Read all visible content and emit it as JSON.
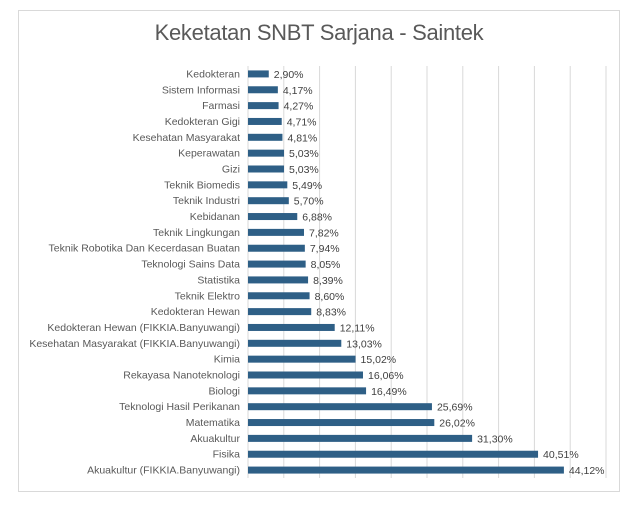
{
  "chart_data": {
    "type": "bar",
    "orientation": "horizontal",
    "title": "Keketatan SNBT Sarjana - Saintek",
    "xlabel": "",
    "ylabel": "",
    "xlim": [
      0,
      50
    ],
    "grid": true,
    "legend": "none",
    "bar_color": "#2E5F86",
    "categories": [
      "Kedokteran",
      "Sistem Informasi",
      "Farmasi",
      "Kedokteran Gigi",
      "Kesehatan Masyarakat",
      "Keperawatan",
      "Gizi",
      "Teknik Biomedis",
      "Teknik Industri",
      "Kebidanan",
      "Teknik Lingkungan",
      "Teknik Robotika Dan Kecerdasan Buatan",
      "Teknologi Sains Data",
      "Statistika",
      "Teknik Elektro",
      "Kedokteran Hewan",
      "Kedokteran Hewan (FIKKIA.Banyuwangi)",
      "Kesehatan Masyarakat (FIKKIA.Banyuwangi)",
      "Kimia",
      "Rekayasa Nanoteknologi",
      "Biologi",
      "Teknologi Hasil Perikanan",
      "Matematika",
      "Akuakultur",
      "Fisika",
      "Akuakultur (FIKKIA.Banyuwangi)"
    ],
    "values": [
      2.9,
      4.17,
      4.27,
      4.71,
      4.81,
      5.03,
      5.03,
      5.49,
      5.7,
      6.88,
      7.82,
      7.94,
      8.05,
      8.39,
      8.6,
      8.83,
      12.11,
      13.03,
      15.02,
      16.06,
      16.49,
      25.69,
      26.02,
      31.3,
      40.51,
      44.12
    ],
    "data_labels": [
      "2,90%",
      "4,17%",
      "4,27%",
      "4,71%",
      "4,81%",
      "5,03%",
      "5,03%",
      "5,49%",
      "5,70%",
      "6,88%",
      "7,82%",
      "7,94%",
      "8,05%",
      "8,39%",
      "8,60%",
      "8,83%",
      "12,11%",
      "13,03%",
      "15,02%",
      "16,06%",
      "16,49%",
      "25,69%",
      "26,02%",
      "31,30%",
      "40,51%",
      "44,12%"
    ]
  }
}
